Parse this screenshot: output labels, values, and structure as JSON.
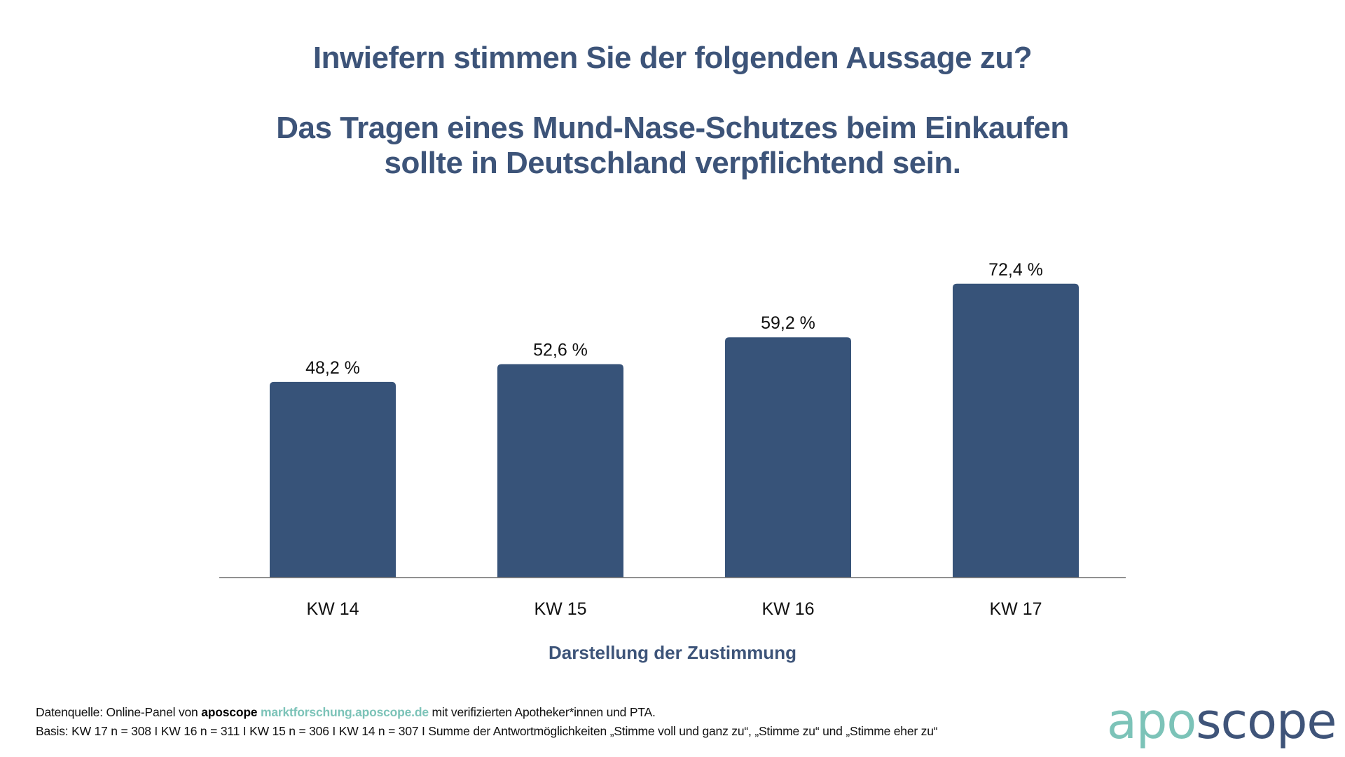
{
  "header": {
    "question": "Inwiefern stimmen Sie der folgenden Aussage zu?",
    "statement_line1": "Das Tragen eines Mund-Nase-Schutzes beim Einkaufen",
    "statement_line2": "sollte in Deutschland verpflichtend sein."
  },
  "chart_data": {
    "type": "bar",
    "title": "Inwiefern stimmen Sie der folgenden Aussage zu? Das Tragen eines Mund-Nase-Schutzes beim Einkaufen sollte in Deutschland verpflichtend sein.",
    "categories": [
      "KW 14",
      "KW 15",
      "KW 16",
      "KW 17"
    ],
    "values": [
      48.2,
      52.6,
      59.2,
      72.4
    ],
    "value_labels": [
      "48,2 %",
      "52,6 %",
      "59,2 %",
      "72,4 %"
    ],
    "xlabel": "Darstellung der Zustimmung",
    "ylabel": "",
    "ylim": [
      0,
      100
    ],
    "grid": false,
    "legend": "none",
    "bar_color": "#375379"
  },
  "footer": {
    "source_prefix": "Datenquelle: Online-Panel von ",
    "source_brand": "aposcope",
    "source_link": "marktforschung.aposcope.de",
    "source_suffix": " mit verifizierten Apotheker*innen und PTA.",
    "basis": "Basis: KW 17 n = 308 I KW 16 n = 311 I KW 15 n = 306 I KW 14 n = 307 I Summe der Antwortmöglichkeiten „Stimme voll und ganz zu“, „Stimme zu“ und „Stimme eher zu“"
  },
  "logo": {
    "part1": "apo",
    "part2": "scope",
    "color1": "#7cc3b8",
    "color2": "#3f5479"
  }
}
